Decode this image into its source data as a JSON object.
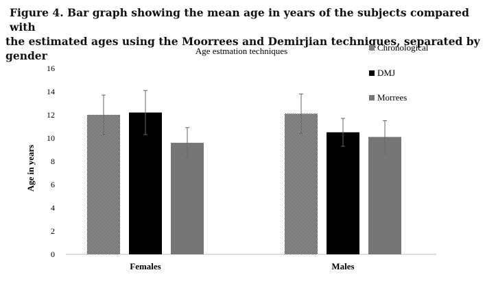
{
  "caption": {
    "line1": "Figure 4. Bar graph showing the mean age in years of the subjects compared with",
    "line2": "the estimated ages using the Moorrees and Demirjian techniques, separated by gender"
  },
  "chart_data": {
    "type": "bar",
    "title": "Age estmation techniques",
    "xlabel": "",
    "ylabel": "Age in years",
    "ylim": [
      0,
      16
    ],
    "yticks": [
      0,
      2,
      4,
      6,
      8,
      10,
      12,
      14,
      16
    ],
    "categories": [
      "Females",
      "Males"
    ],
    "grid": false,
    "legend": "top-right",
    "series": [
      {
        "name": "Chronological",
        "pattern": "checker",
        "color": "#000000",
        "values": [
          12.0,
          12.1
        ],
        "errors": [
          1.7,
          1.7
        ]
      },
      {
        "name": "DMJ",
        "pattern": "solid",
        "color": "#000000",
        "values": [
          12.2,
          10.5
        ],
        "errors": [
          1.9,
          1.2
        ]
      },
      {
        "name": "Morrees",
        "pattern": "solid",
        "color": "#767676",
        "values": [
          9.6,
          10.1
        ],
        "errors": [
          1.3,
          1.4
        ]
      }
    ]
  }
}
